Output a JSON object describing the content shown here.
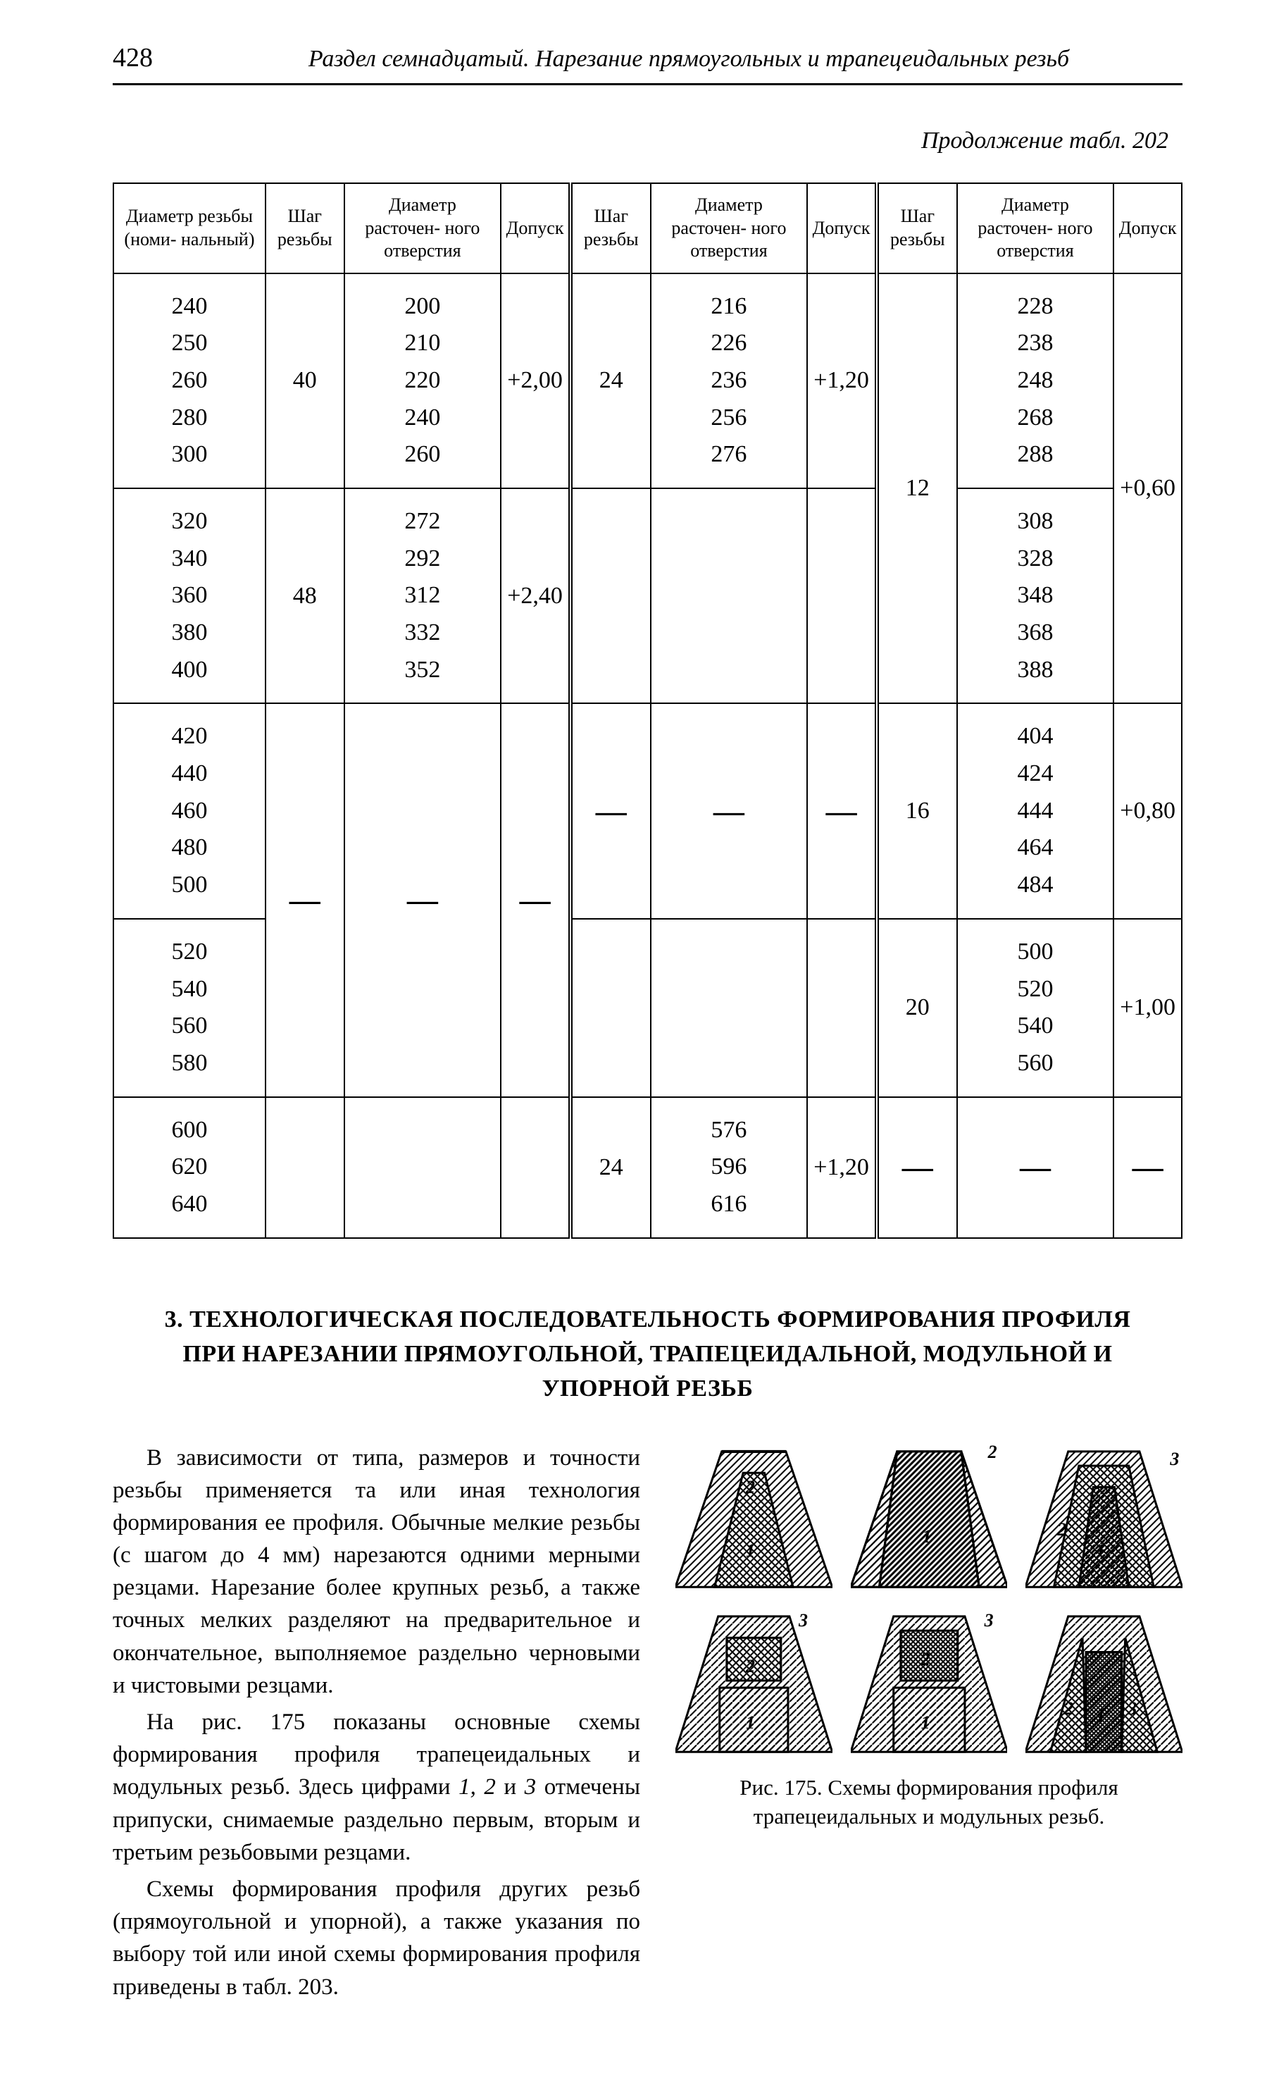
{
  "page_number": "428",
  "running_title": "Раздел семнадцатый. Нарезание прямоугольных и трапецеидальных резьб",
  "continuation": "Продолжение табл. 202",
  "table": {
    "headers": {
      "diam_nominal": "Диаметр резьбы (номи- нальный)",
      "pitch": "Шаг резьбы",
      "bore_diam": "Диаметр расточен- ного отверстия",
      "tolerance": "Допуск"
    },
    "columns_repeat": 3,
    "diam_col": {
      "group1": "240\n250\n260\n280\n300",
      "group2": "320\n340\n360\n380\n400",
      "group3": "420\n440\n460\n480\n500",
      "group4": "520\n540\n560\n580",
      "group5": "600\n620\n640"
    },
    "blockA": {
      "g1": {
        "pitch": "40",
        "bore": "200\n210\n220\n240\n260",
        "tol": "+2,00"
      },
      "g2": {
        "pitch": "48",
        "bore": "272\n292\n312\n332\n352",
        "tol": "+2,40"
      },
      "g3": {
        "pitch": "—",
        "bore": "—",
        "tol": "—"
      },
      "g4": {
        "pitch": "—",
        "bore": "—",
        "tol": "—"
      },
      "g5": {
        "pitch": "",
        "bore": "",
        "tol": ""
      }
    },
    "blockB": {
      "g1": {
        "pitch": "24",
        "bore": "216\n226\n236\n256\n276",
        "tol": "+1,20"
      },
      "g2": {
        "pitch": "",
        "bore": "",
        "tol": ""
      },
      "g3": {
        "pitch": "—",
        "bore": "—",
        "tol": "—"
      },
      "g4": {
        "pitch": "",
        "bore": "",
        "tol": ""
      },
      "g5": {
        "pitch": "24",
        "bore": "576\n596\n616",
        "tol": "+1,20"
      }
    },
    "blockC": {
      "top": {
        "pitch": "12",
        "bore1": "228\n238\n248\n268\n288",
        "bore2": "308\n328\n348\n368\n388",
        "tol": "+0,60"
      },
      "g3": {
        "pitch": "16",
        "bore": "404\n424\n444\n464\n484",
        "tol": "+0,80"
      },
      "g4": {
        "pitch": "20",
        "bore": "500\n520\n540\n560",
        "tol": "+1,00"
      },
      "g5": {
        "pitch": "—",
        "bore": "—",
        "tol": "—"
      }
    }
  },
  "section_title": "3. ТЕХНОЛОГИЧЕСКАЯ ПОСЛЕДОВАТЕЛЬНОСТЬ ФОРМИРОВАНИЯ ПРОФИЛЯ ПРИ НАРЕЗАНИИ ПРЯМОУГОЛЬНОЙ, ТРАПЕЦЕИДАЛЬНОЙ, МОДУЛЬНОЙ И УПОРНОЙ РЕЗЬБ",
  "para1": "В зависимости от типа, размеров и точности резьбы применяется та или иная технология формирования ее профиля. Обычные мелкие резьбы (с шагом до 4 мм) нарезаются одними мерными резцами. Нарезание более крупных резьб, а также точных мелких разделяют на предварительное и окончательное, выполняемое раздельно черновыми и чистовыми резцами.",
  "para2_a": "На рис. 175 показаны основные схемы формирования профиля трапецеидальных и модульных резьб. Здесь цифрами ",
  "para2_b": "1, 2",
  "para2_c": " и ",
  "para2_d": "3",
  "para2_e": " отмечены припуски, снимаемые раздельно первым, вторым и третьим резьбовыми резцами.",
  "para3": "Схемы формирования профиля других резьб (прямоугольной и упорной), а также указания по выбору той или иной схемы формирования профиля приведены в табл. 203.",
  "figure": {
    "caption": "Рис. 175. Схемы формирования профиля трапецеидальных и модульных резьб.",
    "labels": {
      "l1": "1",
      "l2": "2",
      "l3": "3"
    },
    "colors": {
      "stroke": "#000000",
      "bg": "#ffffff"
    }
  }
}
